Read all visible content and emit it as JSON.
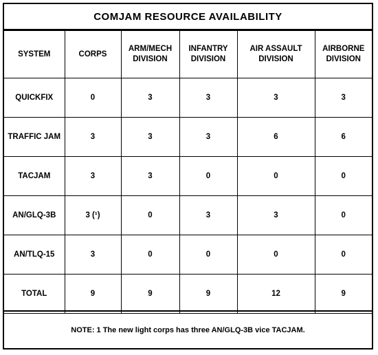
{
  "title": "COMJAM RESOURCE AVAILABILITY",
  "columns": [
    "SYSTEM",
    "CORPS",
    "ARM/MECH\nDIVISION",
    "INFANTRY\nDIVISION",
    "AIR ASSAULT\nDIVISION",
    "AIRBORNE\nDIVISION"
  ],
  "rows": [
    {
      "system": "QUICKFIX",
      "corps": "0",
      "arm_mech": "3",
      "infantry": "3",
      "air_assault": "3",
      "airborne": "3"
    },
    {
      "system": "TRAFFIC JAM",
      "corps": "3",
      "arm_mech": "3",
      "infantry": "3",
      "air_assault": "6",
      "airborne": "6"
    },
    {
      "system": "TACJAM",
      "corps": "3",
      "arm_mech": "3",
      "infantry": "0",
      "air_assault": "0",
      "airborne": "0"
    },
    {
      "system": "AN/GLQ-3B",
      "corps": "3 (¹)",
      "arm_mech": "0",
      "infantry": "3",
      "air_assault": "3",
      "airborne": "0"
    },
    {
      "system": "AN/TLQ-15",
      "corps": "3",
      "arm_mech": "0",
      "infantry": "0",
      "air_assault": "0",
      "airborne": "0"
    },
    {
      "system": "TOTAL",
      "corps": "9",
      "arm_mech": "9",
      "infantry": "9",
      "air_assault": "12",
      "airborne": "9"
    }
  ],
  "note": "NOTE: 1 The new light corps has three AN/GLQ-3B vice TACJAM."
}
